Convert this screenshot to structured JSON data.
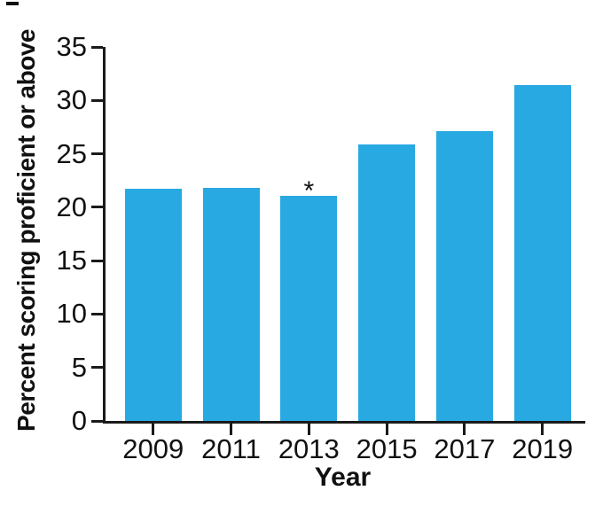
{
  "chart_data": {
    "type": "bar",
    "categories": [
      "2009",
      "2011",
      "2013",
      "2015",
      "2017",
      "2019"
    ],
    "values": [
      21.7,
      21.8,
      21.1,
      25.9,
      27.1,
      31.4
    ],
    "xlabel": "Year",
    "ylabel": "Percent scoring proficient or above",
    "ylim": [
      0,
      35
    ],
    "yticks": [
      0,
      5,
      10,
      15,
      20,
      25,
      30,
      35
    ],
    "grid": false,
    "legend": "none",
    "annotations": [
      {
        "category": "2013",
        "text": "*"
      }
    ],
    "bar_color": "#29A9E1",
    "axis_color": "#1a1a1a",
    "text_color": "#111111"
  }
}
